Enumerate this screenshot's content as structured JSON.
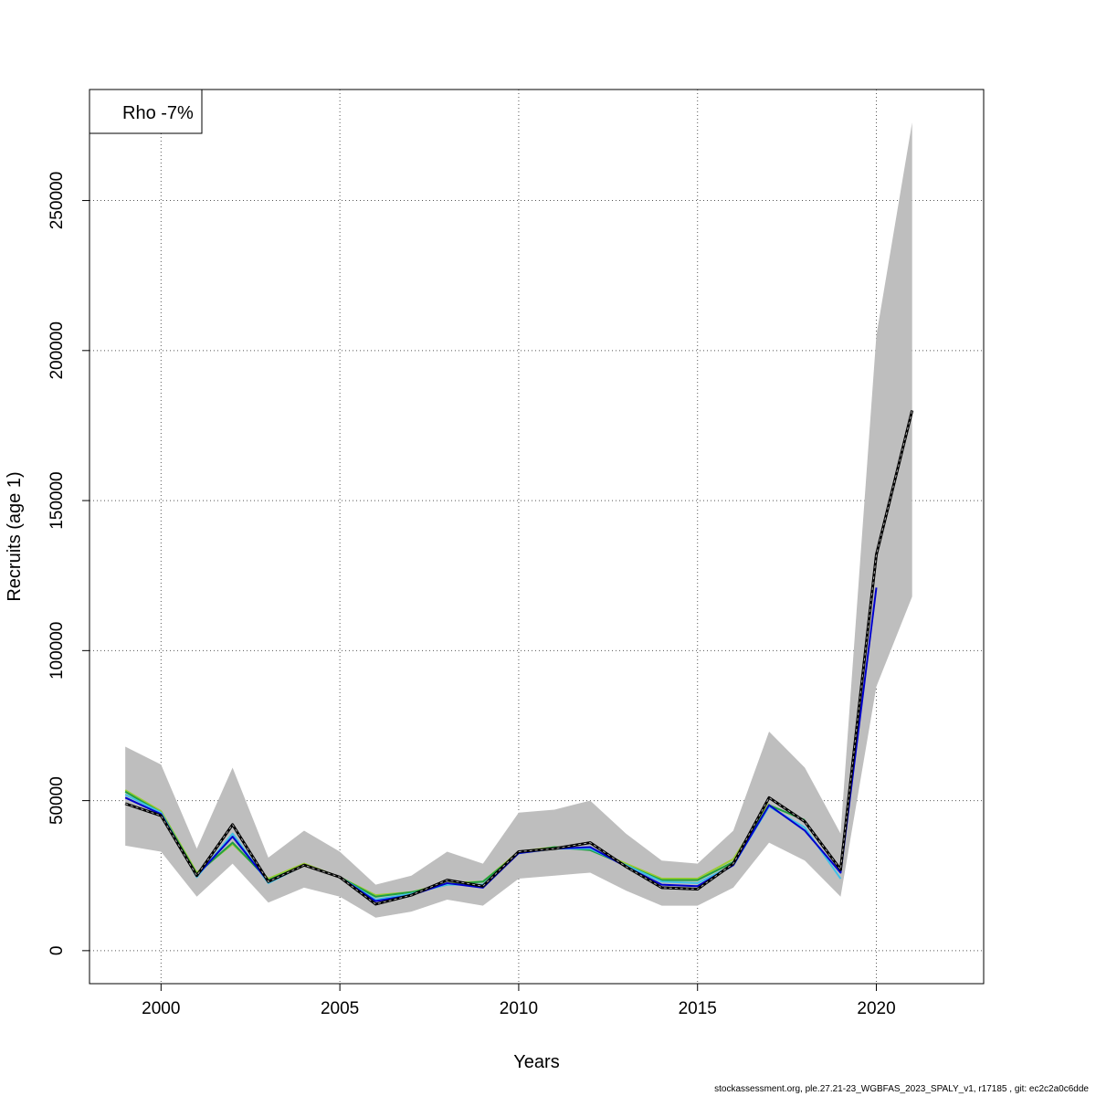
{
  "chart_data": {
    "type": "line",
    "xlabel": "Years",
    "ylabel": "Recruits (age 1)",
    "xlim": [
      1998,
      2023
    ],
    "ylim": [
      -11000,
      287000
    ],
    "x_ticks": [
      2000,
      2005,
      2010,
      2015,
      2020
    ],
    "y_ticks": [
      0,
      50000,
      100000,
      150000,
      200000,
      250000
    ],
    "grid": true,
    "legend": {
      "position": "top-left",
      "text": "Rho -7%"
    },
    "band": {
      "x": [
        1999,
        2000,
        2001,
        2002,
        2003,
        2004,
        2005,
        2006,
        2007,
        2008,
        2009,
        2010,
        2011,
        2012,
        2013,
        2014,
        2015,
        2016,
        2017,
        2018,
        2019,
        2020,
        2021
      ],
      "upper": [
        68000,
        62000,
        34000,
        61000,
        31000,
        40000,
        33000,
        22000,
        25000,
        33000,
        29000,
        46000,
        47000,
        50000,
        39000,
        30000,
        29000,
        40000,
        73000,
        61000,
        39000,
        205000,
        276000
      ],
      "lower": [
        35000,
        33000,
        18000,
        29000,
        16000,
        21000,
        18000,
        11000,
        13000,
        17000,
        15000,
        24000,
        25000,
        26000,
        20000,
        15000,
        15000,
        21000,
        36000,
        30000,
        18000,
        88000,
        118000
      ],
      "color": "#bebebe"
    },
    "series": [
      {
        "color": "#000000",
        "dashed": true,
        "x": [
          1999,
          2000,
          2001,
          2002,
          2003,
          2004,
          2005,
          2006,
          2007,
          2008,
          2009,
          2010,
          2011,
          2012,
          2013,
          2014,
          2015,
          2016,
          2017,
          2018,
          2019,
          2020,
          2021
        ],
        "values": [
          49000,
          45000,
          25000,
          42000,
          23000,
          28500,
          24500,
          15500,
          18500,
          23500,
          21500,
          33000,
          34000,
          36000,
          28000,
          21000,
          20500,
          29000,
          51000,
          43000,
          27000,
          132000,
          180000
        ]
      },
      {
        "color": "#0000cd",
        "dashed": false,
        "x": [
          1999,
          2000,
          2001,
          2002,
          2003,
          2004,
          2005,
          2006,
          2007,
          2008,
          2009,
          2010,
          2011,
          2012,
          2013,
          2014,
          2015,
          2016,
          2017,
          2018,
          2019,
          2020
        ],
        "values": [
          51000,
          45500,
          25000,
          38000,
          23000,
          28500,
          24500,
          16500,
          18500,
          22500,
          21000,
          32500,
          34000,
          34500,
          28000,
          22000,
          21500,
          28500,
          48500,
          40000,
          26000,
          121000
        ]
      },
      {
        "color": "#40c0e8",
        "dashed": false,
        "x": [
          1999,
          2000,
          2001,
          2002,
          2003,
          2004,
          2005,
          2006,
          2007,
          2008,
          2009,
          2010,
          2011,
          2012,
          2013,
          2014,
          2015,
          2016,
          2017,
          2018,
          2019
        ],
        "values": [
          52000,
          46000,
          24500,
          39000,
          22500,
          28500,
          24500,
          17000,
          19000,
          22000,
          22000,
          32500,
          34000,
          34000,
          28500,
          23000,
          22500,
          28500,
          48000,
          41000,
          24000
        ]
      },
      {
        "color": "#20a040",
        "dashed": false,
        "x": [
          1999,
          2000,
          2001,
          2002,
          2003,
          2004,
          2005,
          2006,
          2007,
          2008,
          2009,
          2010,
          2011,
          2012,
          2013,
          2014,
          2015,
          2016,
          2017,
          2018
        ],
        "values": [
          53000,
          46000,
          25500,
          36000,
          23500,
          28500,
          24500,
          18000,
          19500,
          22000,
          23000,
          32500,
          34500,
          33500,
          28500,
          23500,
          23500,
          29500,
          48500,
          43500
        ]
      },
      {
        "color": "#9acd32",
        "dashed": false,
        "x": [
          1999,
          2000,
          2001,
          2002,
          2003,
          2004,
          2005,
          2006,
          2007,
          2008,
          2009,
          2010,
          2011,
          2012,
          2013,
          2014,
          2015,
          2016,
          2017
        ],
        "values": [
          53500,
          46500,
          26000,
          35500,
          24000,
          29000,
          24500,
          18500,
          19500,
          22500,
          23000,
          33000,
          34500,
          34000,
          29000,
          24000,
          24000,
          30500,
          49000
        ]
      }
    ]
  },
  "footer": "stockassessment.org, ple.27.21-23_WGBFAS_2023_SPALY_v1, r17185 , git: ec2c2a0c6dde"
}
